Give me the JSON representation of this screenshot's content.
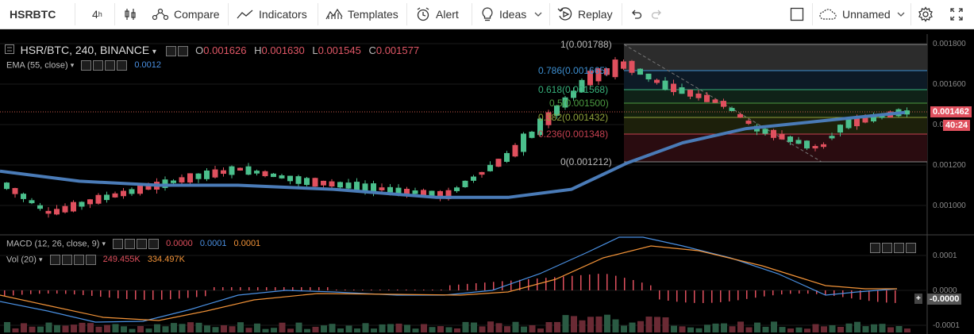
{
  "toolbar": {
    "symbol": "HSRBTC",
    "interval": "4",
    "interval_unit": "h",
    "compare": "Compare",
    "indicators": "Indicators",
    "templates": "Templates",
    "alert": "Alert",
    "ideas": "Ideas",
    "replay": "Replay",
    "layout_name": "Unnamed",
    "icons": [
      "candles-icon",
      "compare-icon",
      "indicators-icon",
      "templates-icon",
      "alert-icon",
      "ideas-icon",
      "replay-icon",
      "undo-icon",
      "redo-icon",
      "layout-icon",
      "cloud-icon",
      "settings-icon",
      "fullscreen-icon"
    ]
  },
  "main_legend": {
    "title": "HSR/BTC, 240, BINANCE",
    "o_label": "O",
    "o_value": "0.001626",
    "h_label": "H",
    "h_value": "0.001630",
    "l_label": "L",
    "l_value": "0.001545",
    "c_label": "C",
    "c_value": "0.001577",
    "ema_label": "EMA (55, close)",
    "ema_value": "0.0012"
  },
  "price_axis": {
    "ticks": [
      "0.001800",
      "0.001600",
      "0.001200",
      "0.001000"
    ],
    "current_price": "0.001462",
    "countdown": "40:24",
    "partial_tick": "0.0"
  },
  "fib_levels": [
    {
      "label": "1(0.001788)"
    },
    {
      "label": "0.786(0.001665)"
    },
    {
      "label": "0.618(0.001568)"
    },
    {
      "label": "0.5(0.001500)"
    },
    {
      "label": "0.382(0.001432)"
    },
    {
      "label": "0.236(0.001348)"
    },
    {
      "label": "0(0.001212)"
    }
  ],
  "macd_legend": {
    "label": "MACD (12, 26, close, 9)",
    "v1": "0.0000",
    "v2": "0.0001",
    "v3": "0.0001",
    "vol_label": "Vol (20)",
    "vol1": "249.455K",
    "vol2": "334.497K"
  },
  "macd_axis": {
    "ticks": [
      "0.0001",
      "0.0000",
      "-0.0001"
    ],
    "current": "-0.0000"
  },
  "colors": {
    "up": "#4bbf8c",
    "down": "#e0505e",
    "ema": "#4a7bb7",
    "macd": "#4a90e2",
    "signal": "#f29338"
  }
}
